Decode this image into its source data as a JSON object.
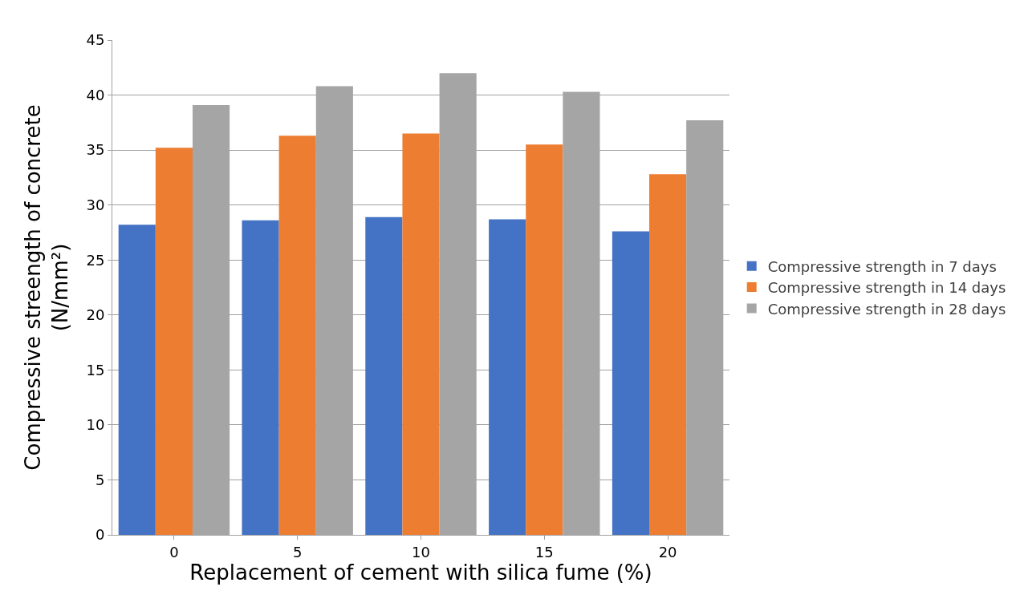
{
  "chart_data": {
    "type": "bar",
    "xlabel": "Replacement of cement with silica fume (%)",
    "ylabel": "Compressive streength of concrete\n(N/mm²)",
    "categories": [
      "0",
      "5",
      "10",
      "15",
      "20"
    ],
    "series": [
      {
        "name": "Compressive strength in 7 days",
        "color": "#4472c4",
        "values": [
          28.2,
          28.6,
          28.9,
          28.7,
          27.6
        ]
      },
      {
        "name": "Compressive strength in 14 days",
        "color": "#ed7d31",
        "values": [
          35.2,
          36.3,
          36.5,
          35.5,
          32.8
        ]
      },
      {
        "name": "Compressive strength in 28 days",
        "color": "#a5a5a5",
        "values": [
          39.1,
          40.8,
          42.0,
          40.3,
          37.7
        ]
      }
    ],
    "ylim": [
      0,
      45
    ],
    "yticks": [
      0,
      5,
      10,
      15,
      20,
      25,
      30,
      35,
      40,
      45
    ],
    "grid": "y",
    "legend": "right"
  }
}
